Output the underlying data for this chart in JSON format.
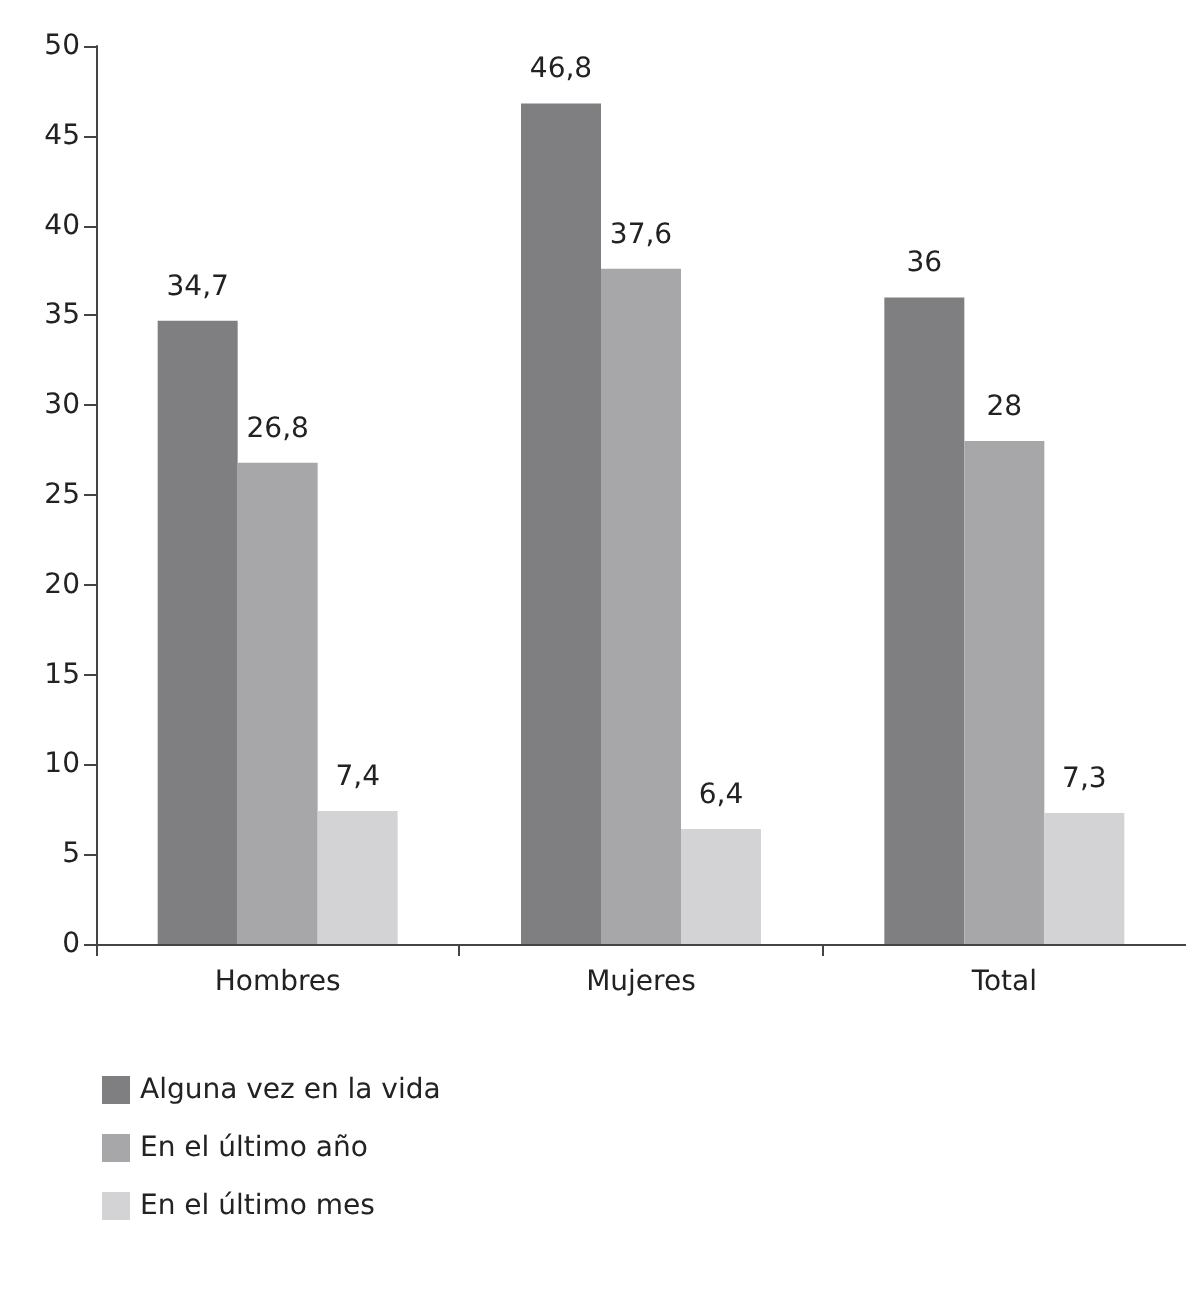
{
  "chart_data": {
    "type": "bar",
    "categories": [
      "Hombres",
      "Mujeres",
      "Total"
    ],
    "series": [
      {
        "name": "Alguna vez en la vida",
        "color": "#7f7f81",
        "values": [
          34.7,
          46.8,
          36
        ],
        "value_labels": [
          "34,7",
          "46,8",
          "36"
        ]
      },
      {
        "name": "En el último año",
        "color": "#a7a7a9",
        "values": [
          26.8,
          37.6,
          28
        ],
        "value_labels": [
          "26,8",
          "37,6",
          "28"
        ]
      },
      {
        "name": "En el último mes",
        "color": "#d3d3d5",
        "values": [
          7.4,
          6.4,
          7.3
        ],
        "value_labels": [
          "7,4",
          "6,4",
          "7,3"
        ]
      }
    ],
    "ylim": [
      0,
      50
    ],
    "yticks": [
      0,
      5,
      10,
      15,
      20,
      25,
      30,
      35,
      40,
      45,
      50
    ],
    "grid": false,
    "legend": "bottom left"
  }
}
